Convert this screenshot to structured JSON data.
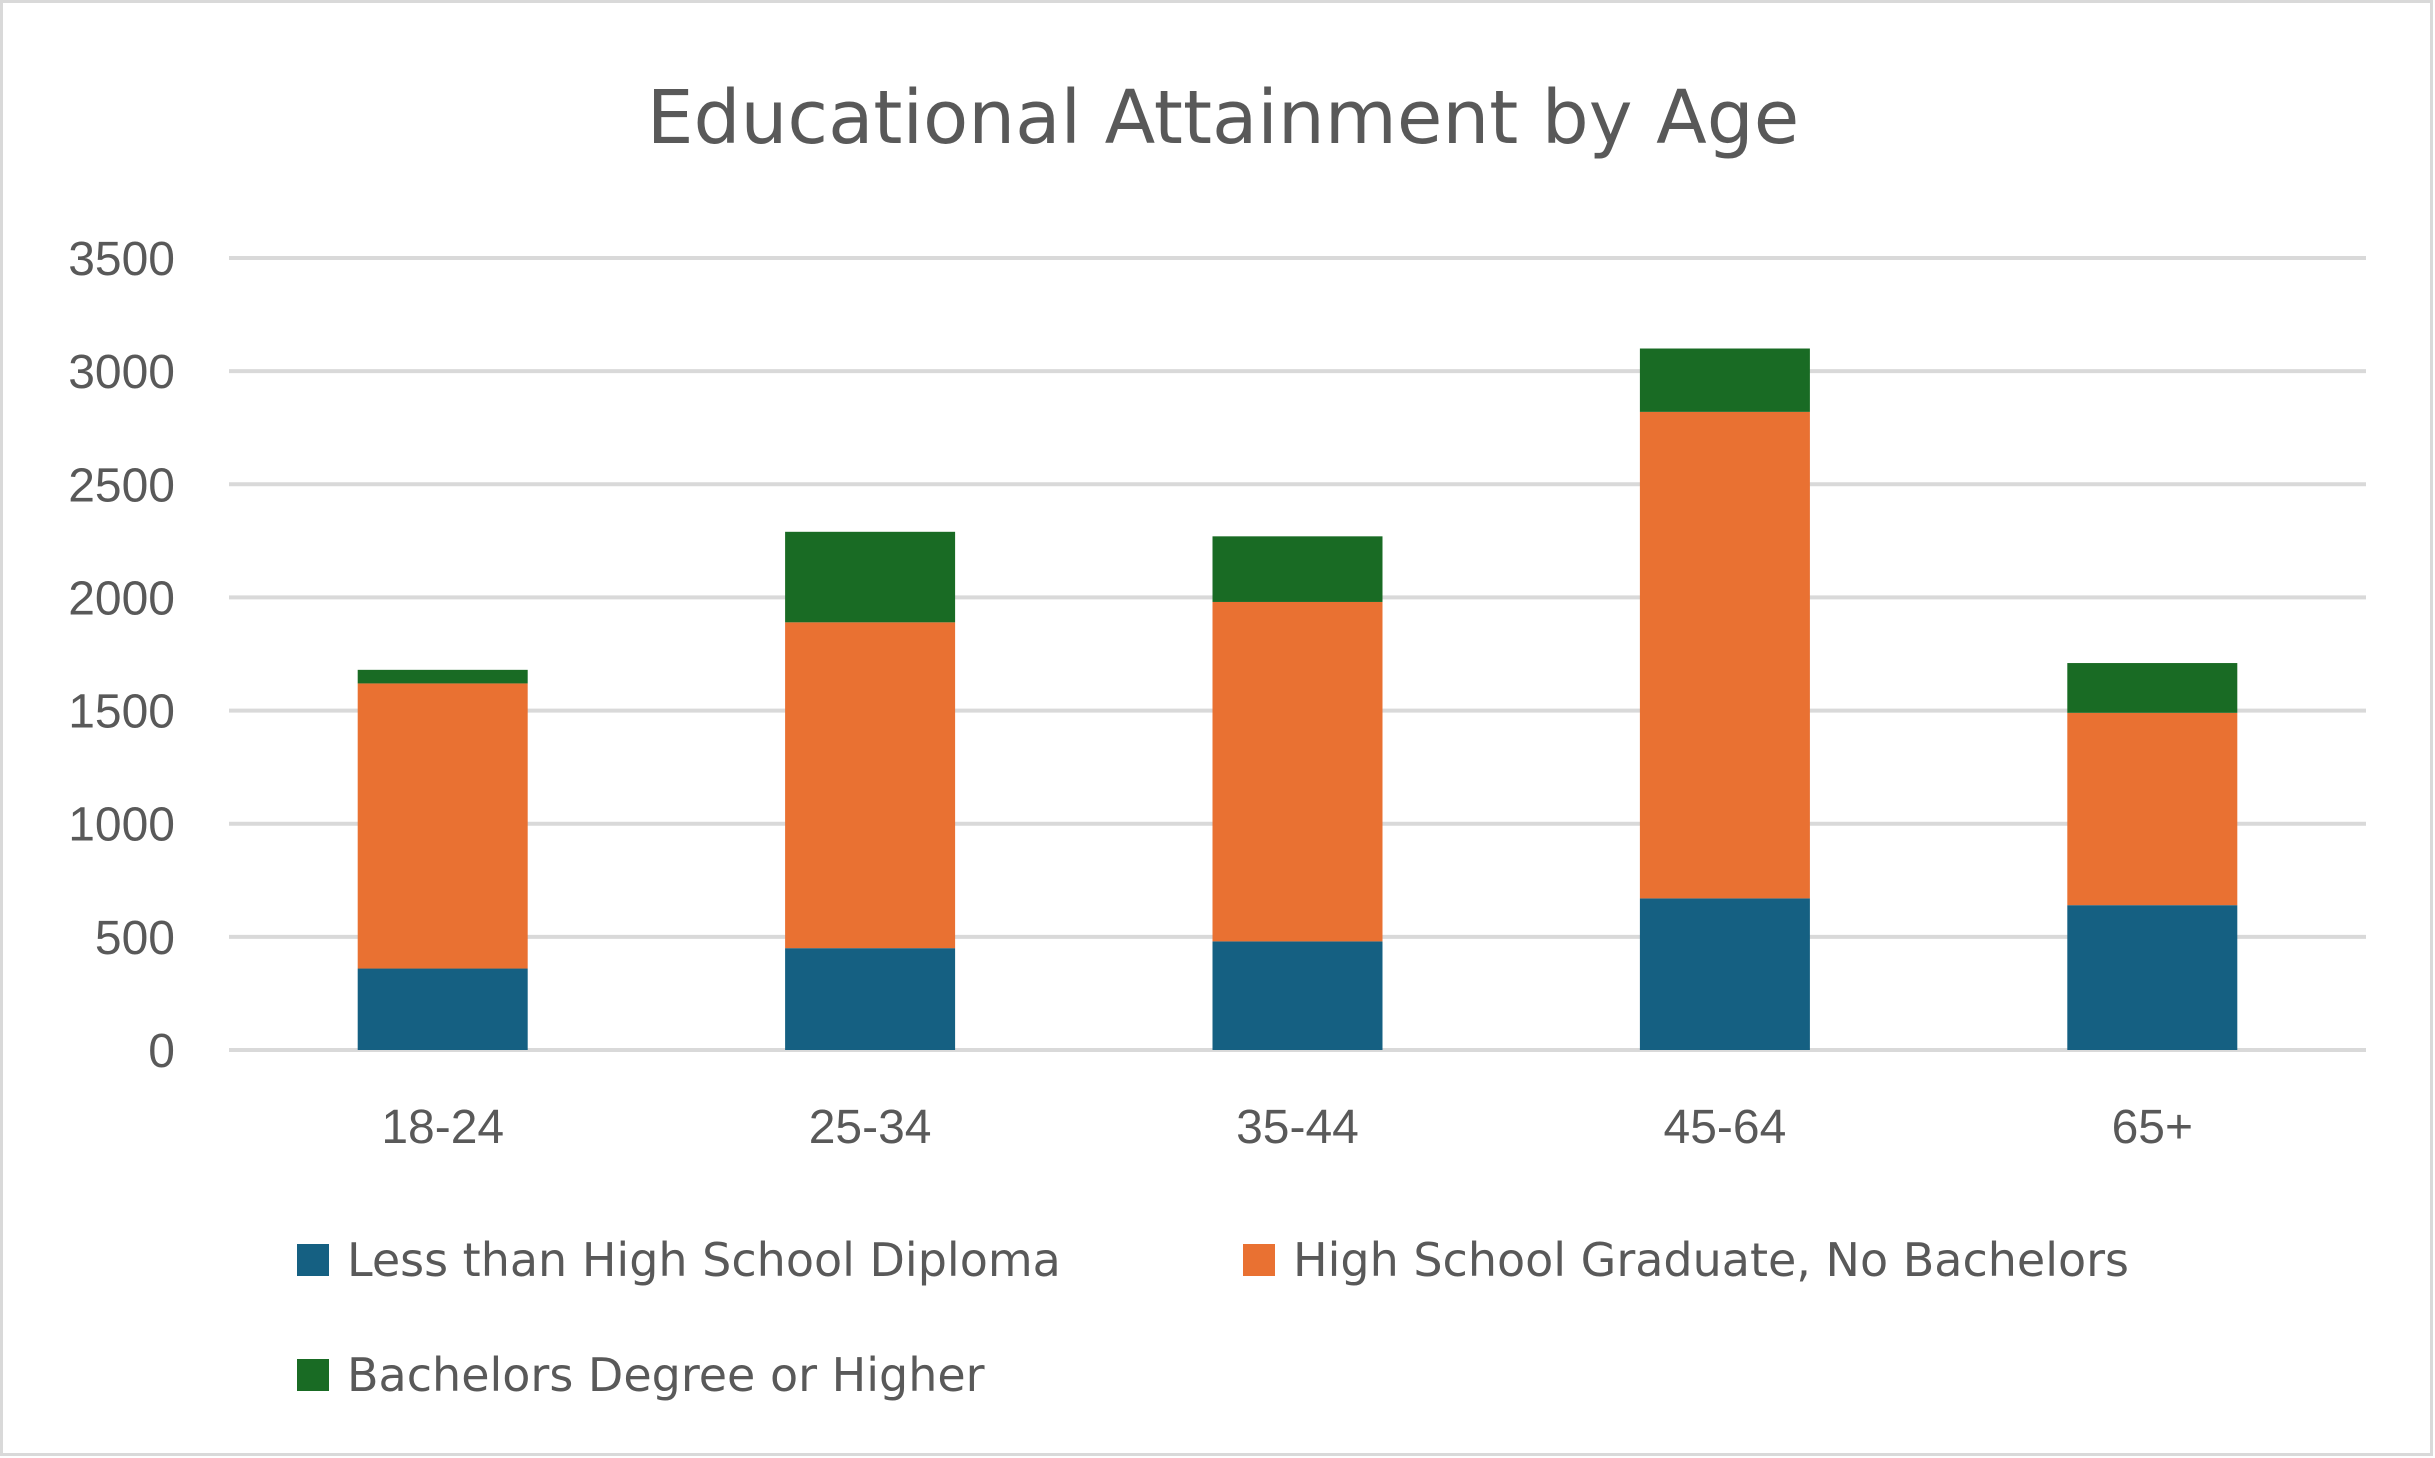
{
  "chart_data": {
    "type": "bar",
    "stacked": true,
    "title": "Educational Attainment by Age",
    "xlabel": "",
    "ylabel": "",
    "categories": [
      "18-24",
      "25-34",
      "35-44",
      "45-64",
      "65+"
    ],
    "series": [
      {
        "name": "Less than High School Diploma",
        "color": "#156082",
        "values": [
          360,
          450,
          480,
          670,
          640
        ]
      },
      {
        "name": "High School Graduate, No Bachelors",
        "color": "#E97132",
        "values": [
          1260,
          1440,
          1500,
          2150,
          850
        ]
      },
      {
        "name": "Bachelors Degree or Higher",
        "color": "#196B24",
        "values": [
          60,
          400,
          290,
          280,
          220
        ]
      }
    ],
    "ylim": [
      0,
      3500
    ],
    "yticks": [
      0,
      500,
      1000,
      1500,
      2000,
      2500,
      3000,
      3500
    ],
    "grid": true,
    "legend_position": "bottom"
  }
}
